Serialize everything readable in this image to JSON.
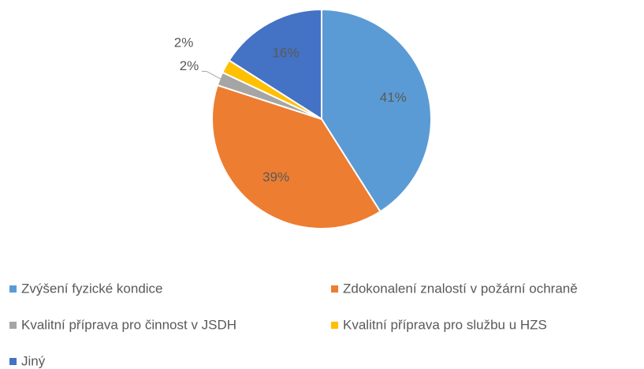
{
  "chart_data": {
    "type": "pie",
    "categories": [
      "Zvýšení fyzické kondice",
      "Zdokonalení znalostí v požární ochraně",
      "Kvalitní příprava pro činnost v JSDH",
      "Kvalitní příprava pro službu u HZS",
      "Jiný"
    ],
    "values": [
      41,
      39,
      2,
      2,
      16
    ],
    "value_labels": [
      "41%",
      "39%",
      "2%",
      "2%",
      "16%"
    ],
    "colors": [
      "#5b9bd5",
      "#ed7d31",
      "#a5a5a5",
      "#ffc000",
      "#4472c4"
    ],
    "legend": "bottom"
  }
}
